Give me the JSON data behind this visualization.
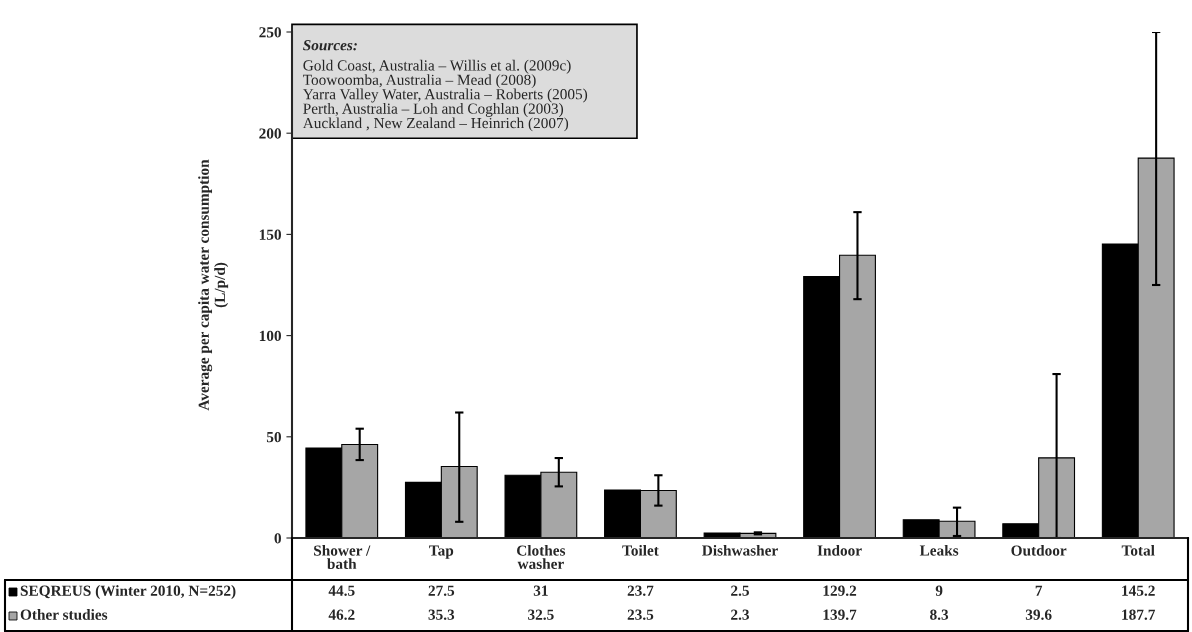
{
  "chart_data": {
    "type": "bar",
    "ylabel": "Average per capita water consumption\n(L/p/d)",
    "categories": [
      "Shower /\nbath",
      "Tap",
      "Clothes\nwasher",
      "Toilet",
      "Dishwasher",
      "Indoor",
      "Leaks",
      "Outdoor",
      "Total"
    ],
    "series": [
      {
        "name": "SEQREUS (Winter 2010, N=252)",
        "color": "#000000",
        "values": [
          44.5,
          27.5,
          31,
          23.7,
          2.5,
          129.2,
          9,
          7,
          145.2
        ]
      },
      {
        "name": "Other studies",
        "color": "#a6a6a6",
        "values": [
          46.2,
          35.3,
          32.5,
          23.5,
          2.3,
          139.7,
          8.3,
          39.6,
          187.7
        ],
        "errors": [
          [
            38.5,
            54
          ],
          [
            8,
            62
          ],
          [
            25.5,
            39.5
          ],
          [
            16,
            31
          ],
          [
            1.8,
            2.8
          ],
          [
            118,
            161
          ],
          [
            1,
            15
          ],
          [
            0,
            81
          ],
          [
            125,
            250
          ]
        ]
      }
    ],
    "ylim": [
      0,
      250
    ],
    "yticks": [
      0,
      50,
      100,
      150,
      200,
      250
    ],
    "grid": false,
    "legend": "bottom",
    "data_labels": true,
    "annotations": [
      "Sources:",
      "Gold Coast, Australia – Willis et al. (2009c)",
      "Toowoomba, Australia – Mead (2008)",
      "Yarra Valley Water, Australia – Roberts (2005)",
      "Perth, Australia – Loh and Coghlan (2003)",
      "Auckland , New Zealand – Heinrich (2007)"
    ]
  }
}
